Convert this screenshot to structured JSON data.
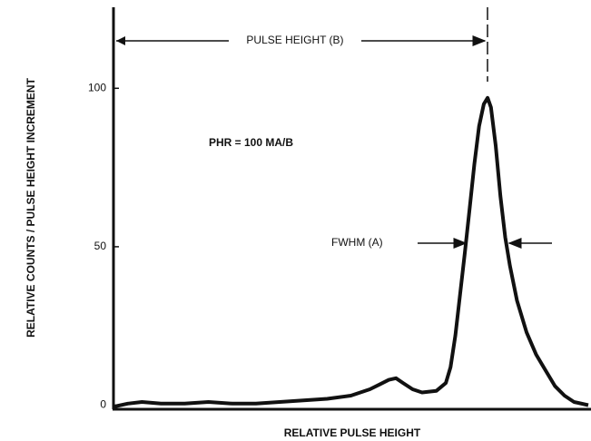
{
  "chart_data": {
    "type": "line",
    "annotations": [
      "PULSE HEIGHT (B)",
      "PHR = 100 MA/B",
      "FWHM (A)"
    ],
    "x_label": "RELATIVE PULSE HEIGHT",
    "y_label": "RELATIVE COUNTS / PULSE HEIGHT INCREMENT",
    "xlim": [
      0,
      100
    ],
    "ylim": [
      -1,
      125
    ],
    "yticks": [
      0,
      50,
      100
    ],
    "color": "#111111",
    "x": [
      0,
      3,
      6,
      10,
      15,
      20,
      25,
      30,
      35,
      40,
      45,
      50,
      54,
      56,
      58,
      59.5,
      61,
      63,
      65,
      68,
      70,
      71,
      72,
      73,
      74,
      75,
      76,
      77,
      78,
      78.8,
      79.5,
      80.5,
      81.5,
      82.5,
      83.5,
      85,
      87,
      89,
      91,
      93,
      95,
      97,
      100
    ],
    "values": [
      -0.5,
      0.5,
      1,
      0.5,
      0.5,
      1,
      0.5,
      0.5,
      1,
      1.5,
      2,
      3,
      5,
      6.5,
      8,
      8.5,
      7,
      5,
      4,
      4.5,
      7,
      12,
      22,
      35,
      48,
      62,
      76,
      88,
      95,
      97,
      94,
      82,
      66,
      53,
      44,
      33,
      23,
      16,
      11,
      6,
      3,
      1,
      0
    ]
  }
}
